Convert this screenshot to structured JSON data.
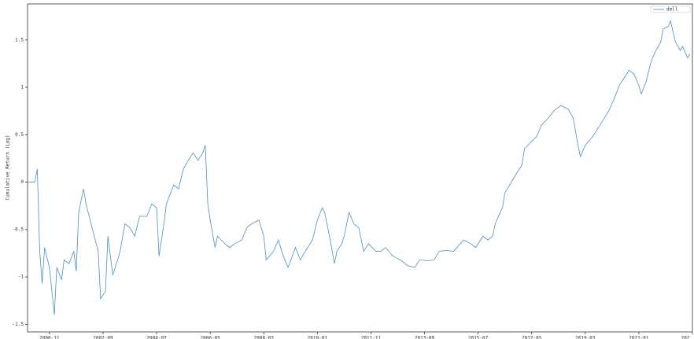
{
  "chart_data": {
    "type": "line",
    "y_label": "Cumulative Return (Log)",
    "legend": "upper right",
    "x": [
      "2000-02",
      "2000-05",
      "2000-06",
      "2000-07",
      "2000-08",
      "2000-09",
      "2000-11",
      "2001-01",
      "2001-02",
      "2001-04",
      "2001-05",
      "2001-07",
      "2001-09",
      "2001-10",
      "2001-11",
      "2002-01",
      "2002-02",
      "2002-05",
      "2002-07",
      "2002-08",
      "2002-10",
      "2002-11",
      "2003-01",
      "2003-03",
      "2003-04",
      "2003-06",
      "2003-08",
      "2003-10",
      "2003-12",
      "2004-03",
      "2004-05",
      "2004-07",
      "2004-08",
      "2004-10",
      "2004-11",
      "2005-02",
      "2005-04",
      "2005-06",
      "2005-08",
      "2005-10",
      "2005-12",
      "2006-02",
      "2006-03",
      "2006-04",
      "2006-05",
      "2006-07",
      "2006-08",
      "2006-11",
      "2007-01",
      "2007-03",
      "2007-06",
      "2007-08",
      "2007-10",
      "2008-01",
      "2008-03",
      "2008-04",
      "2008-07",
      "2008-09",
      "2008-11",
      "2009-01",
      "2009-04",
      "2009-06",
      "2009-08",
      "2009-11",
      "2010-01",
      "2010-03",
      "2010-04",
      "2010-06",
      "2010-08",
      "2010-09",
      "2010-11",
      "2010-12",
      "2011-02",
      "2011-04",
      "2011-06",
      "2011-08",
      "2011-10",
      "2012-01",
      "2012-03",
      "2012-05",
      "2012-08",
      "2012-11",
      "2013-02",
      "2013-05",
      "2013-07",
      "2013-10",
      "2014-01",
      "2014-03",
      "2014-06",
      "2014-09",
      "2015-01",
      "2015-04",
      "2015-06",
      "2015-09",
      "2015-11",
      "2016-01",
      "2016-02",
      "2016-05",
      "2016-06",
      "2016-08",
      "2016-10",
      "2017-01",
      "2017-02",
      "2017-05",
      "2017-07",
      "2017-09",
      "2017-12",
      "2018-02",
      "2018-05",
      "2018-08",
      "2018-10",
      "2018-12",
      "2019-01",
      "2019-03",
      "2019-06",
      "2019-08",
      "2019-10",
      "2020-01",
      "2020-03",
      "2020-05",
      "2020-07",
      "2020-09",
      "2020-11",
      "2021-01",
      "2021-02",
      "2021-04",
      "2021-06",
      "2021-08",
      "2021-10",
      "2021-11",
      "2022-01",
      "2022-02",
      "2022-04",
      "2022-06",
      "2022-07",
      "2022-09",
      "2022-10"
    ],
    "series": [
      {
        "name": "dell",
        "color": "#4a8fc7",
        "values": [
          0,
          0,
          0.14,
          -0.73,
          -1.07,
          -0.69,
          -0.9,
          -1.4,
          -0.9,
          -1.03,
          -0.82,
          -0.86,
          -0.73,
          -0.94,
          -0.32,
          -0.07,
          -0.23,
          -0.53,
          -0.73,
          -1.23,
          -1.15,
          -0.57,
          -0.98,
          -0.82,
          -0.73,
          -0.44,
          -0.48,
          -0.57,
          -0.36,
          -0.36,
          -0.23,
          -0.27,
          -0.78,
          -0.44,
          -0.23,
          -0.03,
          -0.07,
          0.14,
          0.23,
          0.31,
          0.23,
          0.31,
          0.39,
          -0.23,
          -0.4,
          -0.69,
          -0.57,
          -0.65,
          -0.69,
          -0.65,
          -0.61,
          -0.48,
          -0.44,
          -0.4,
          -0.57,
          -0.82,
          -0.73,
          -0.61,
          -0.78,
          -0.9,
          -0.69,
          -0.82,
          -0.73,
          -0.61,
          -0.4,
          -0.27,
          -0.32,
          -0.57,
          -0.86,
          -0.73,
          -0.65,
          -0.57,
          -0.32,
          -0.44,
          -0.48,
          -0.73,
          -0.65,
          -0.73,
          -0.73,
          -0.69,
          -0.78,
          -0.82,
          -0.88,
          -0.9,
          -0.82,
          -0.83,
          -0.82,
          -0.73,
          -0.72,
          -0.73,
          -0.61,
          -0.65,
          -0.69,
          -0.57,
          -0.61,
          -0.57,
          -0.44,
          -0.27,
          -0.11,
          -0.03,
          0.06,
          0.18,
          0.35,
          0.43,
          0.48,
          0.6,
          0.68,
          0.75,
          0.81,
          0.77,
          0.68,
          0.39,
          0.27,
          0.39,
          0.48,
          0.56,
          0.64,
          0.77,
          0.89,
          1.02,
          1.1,
          1.18,
          1.14,
          1.02,
          0.93,
          1.06,
          1.27,
          1.39,
          1.48,
          1.62,
          1.64,
          1.7,
          1.48,
          1.39,
          1.43,
          1.31,
          1.35
        ]
      }
    ],
    "xlim": [
      "2000-02",
      "2022-11"
    ],
    "xticks": [
      "2000-11",
      "2002-09",
      "2004-07",
      "2006-05",
      "2008-03",
      "2010-01",
      "2011-11",
      "2013-09",
      "2015-07",
      "2017-05",
      "2019-03",
      "2021-01",
      {
        "value": "2022-11",
        "label": "202"
      }
    ],
    "ylim": [
      -1.58,
      1.88
    ],
    "yticks": [
      -1.5,
      -1.0,
      -0.5,
      0.0,
      0.5,
      1.0,
      1.5
    ]
  }
}
